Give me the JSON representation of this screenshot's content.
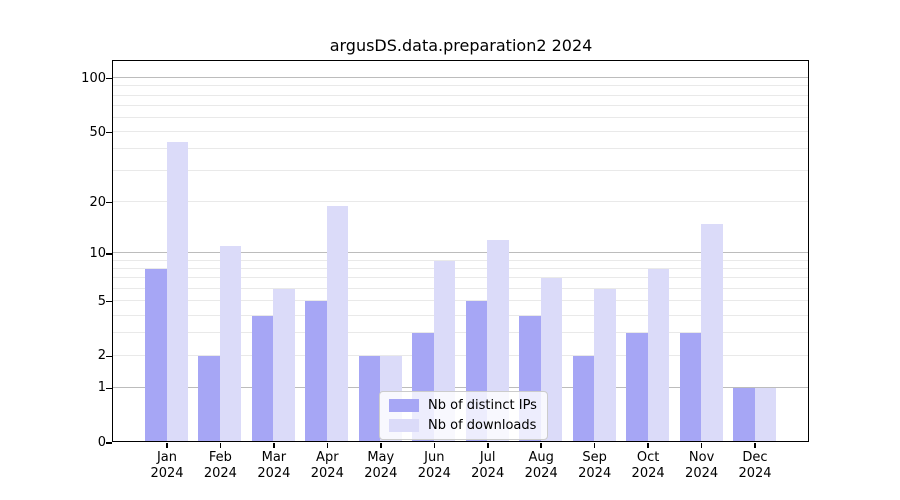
{
  "title": "argusDS.data.preparation2 2024",
  "chart_data": {
    "type": "bar",
    "title": "argusDS.data.preparation2 2024",
    "categories": [
      "Jan",
      "Feb",
      "Mar",
      "Apr",
      "May",
      "Jun",
      "Jul",
      "Aug",
      "Sep",
      "Oct",
      "Nov",
      "Dec"
    ],
    "category_year": "2024",
    "series": [
      {
        "name": "Nb of distinct IPs",
        "color": "#a6a6f5",
        "values": [
          8,
          2,
          4,
          5,
          2,
          3,
          5,
          4,
          2,
          3,
          3,
          1
        ]
      },
      {
        "name": "Nb of downloads",
        "color": "#dbdbf9",
        "values": [
          44,
          11,
          6,
          19,
          2,
          9,
          12,
          7,
          6,
          8,
          15,
          1
        ]
      }
    ],
    "xlabel": "",
    "ylabel": "",
    "yscale": "log10(1+y)",
    "ylim": [
      0,
      126
    ],
    "yticks": [
      100,
      50,
      20,
      10,
      5,
      2,
      1,
      0
    ],
    "minor_gridlines": [
      3,
      4,
      6,
      7,
      8,
      9,
      30,
      40,
      60,
      70,
      80,
      90
    ],
    "strong_gridlines": [
      1,
      10,
      100
    ],
    "grid": true,
    "legend_position": "lower center"
  },
  "colors": {
    "grid_minor": "#e9e9e9",
    "grid_strong": "#bcbcbc",
    "axis": "#000000",
    "legend_border": "#cccccc"
  }
}
